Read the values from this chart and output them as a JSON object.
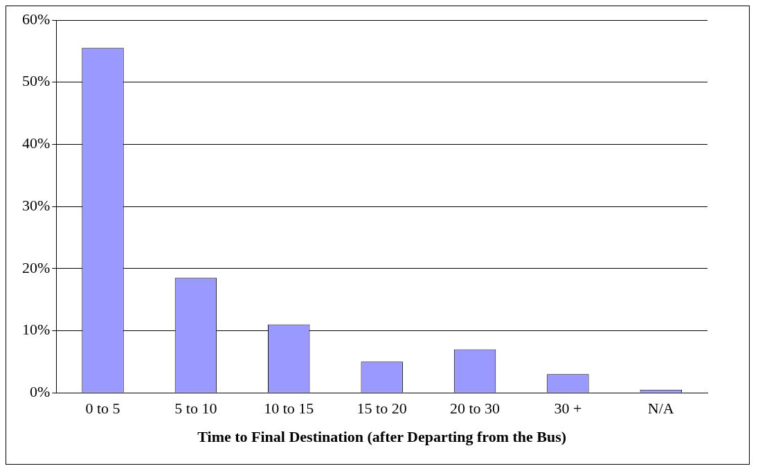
{
  "chart_data": {
    "type": "bar",
    "xlabel": "Time to Final Destination (after Departing from the Bus)",
    "categories": [
      "0 to 5",
      "5 to 10",
      "10 to 15",
      "15 to 20",
      "20 to 30",
      "30 +",
      "N/A"
    ],
    "values": [
      55.5,
      18.5,
      11,
      5,
      7,
      3,
      0.5
    ],
    "color": "#9999ff",
    "ylim": [
      0,
      60
    ],
    "yticks": [
      {
        "value": 0,
        "label": "0%"
      },
      {
        "value": 10,
        "label": "10%"
      },
      {
        "value": 20,
        "label": "20%"
      },
      {
        "value": 30,
        "label": "30%"
      },
      {
        "value": 40,
        "label": "40%"
      },
      {
        "value": 50,
        "label": "50%"
      },
      {
        "value": 60,
        "label": "60%"
      }
    ],
    "grid": "y"
  }
}
